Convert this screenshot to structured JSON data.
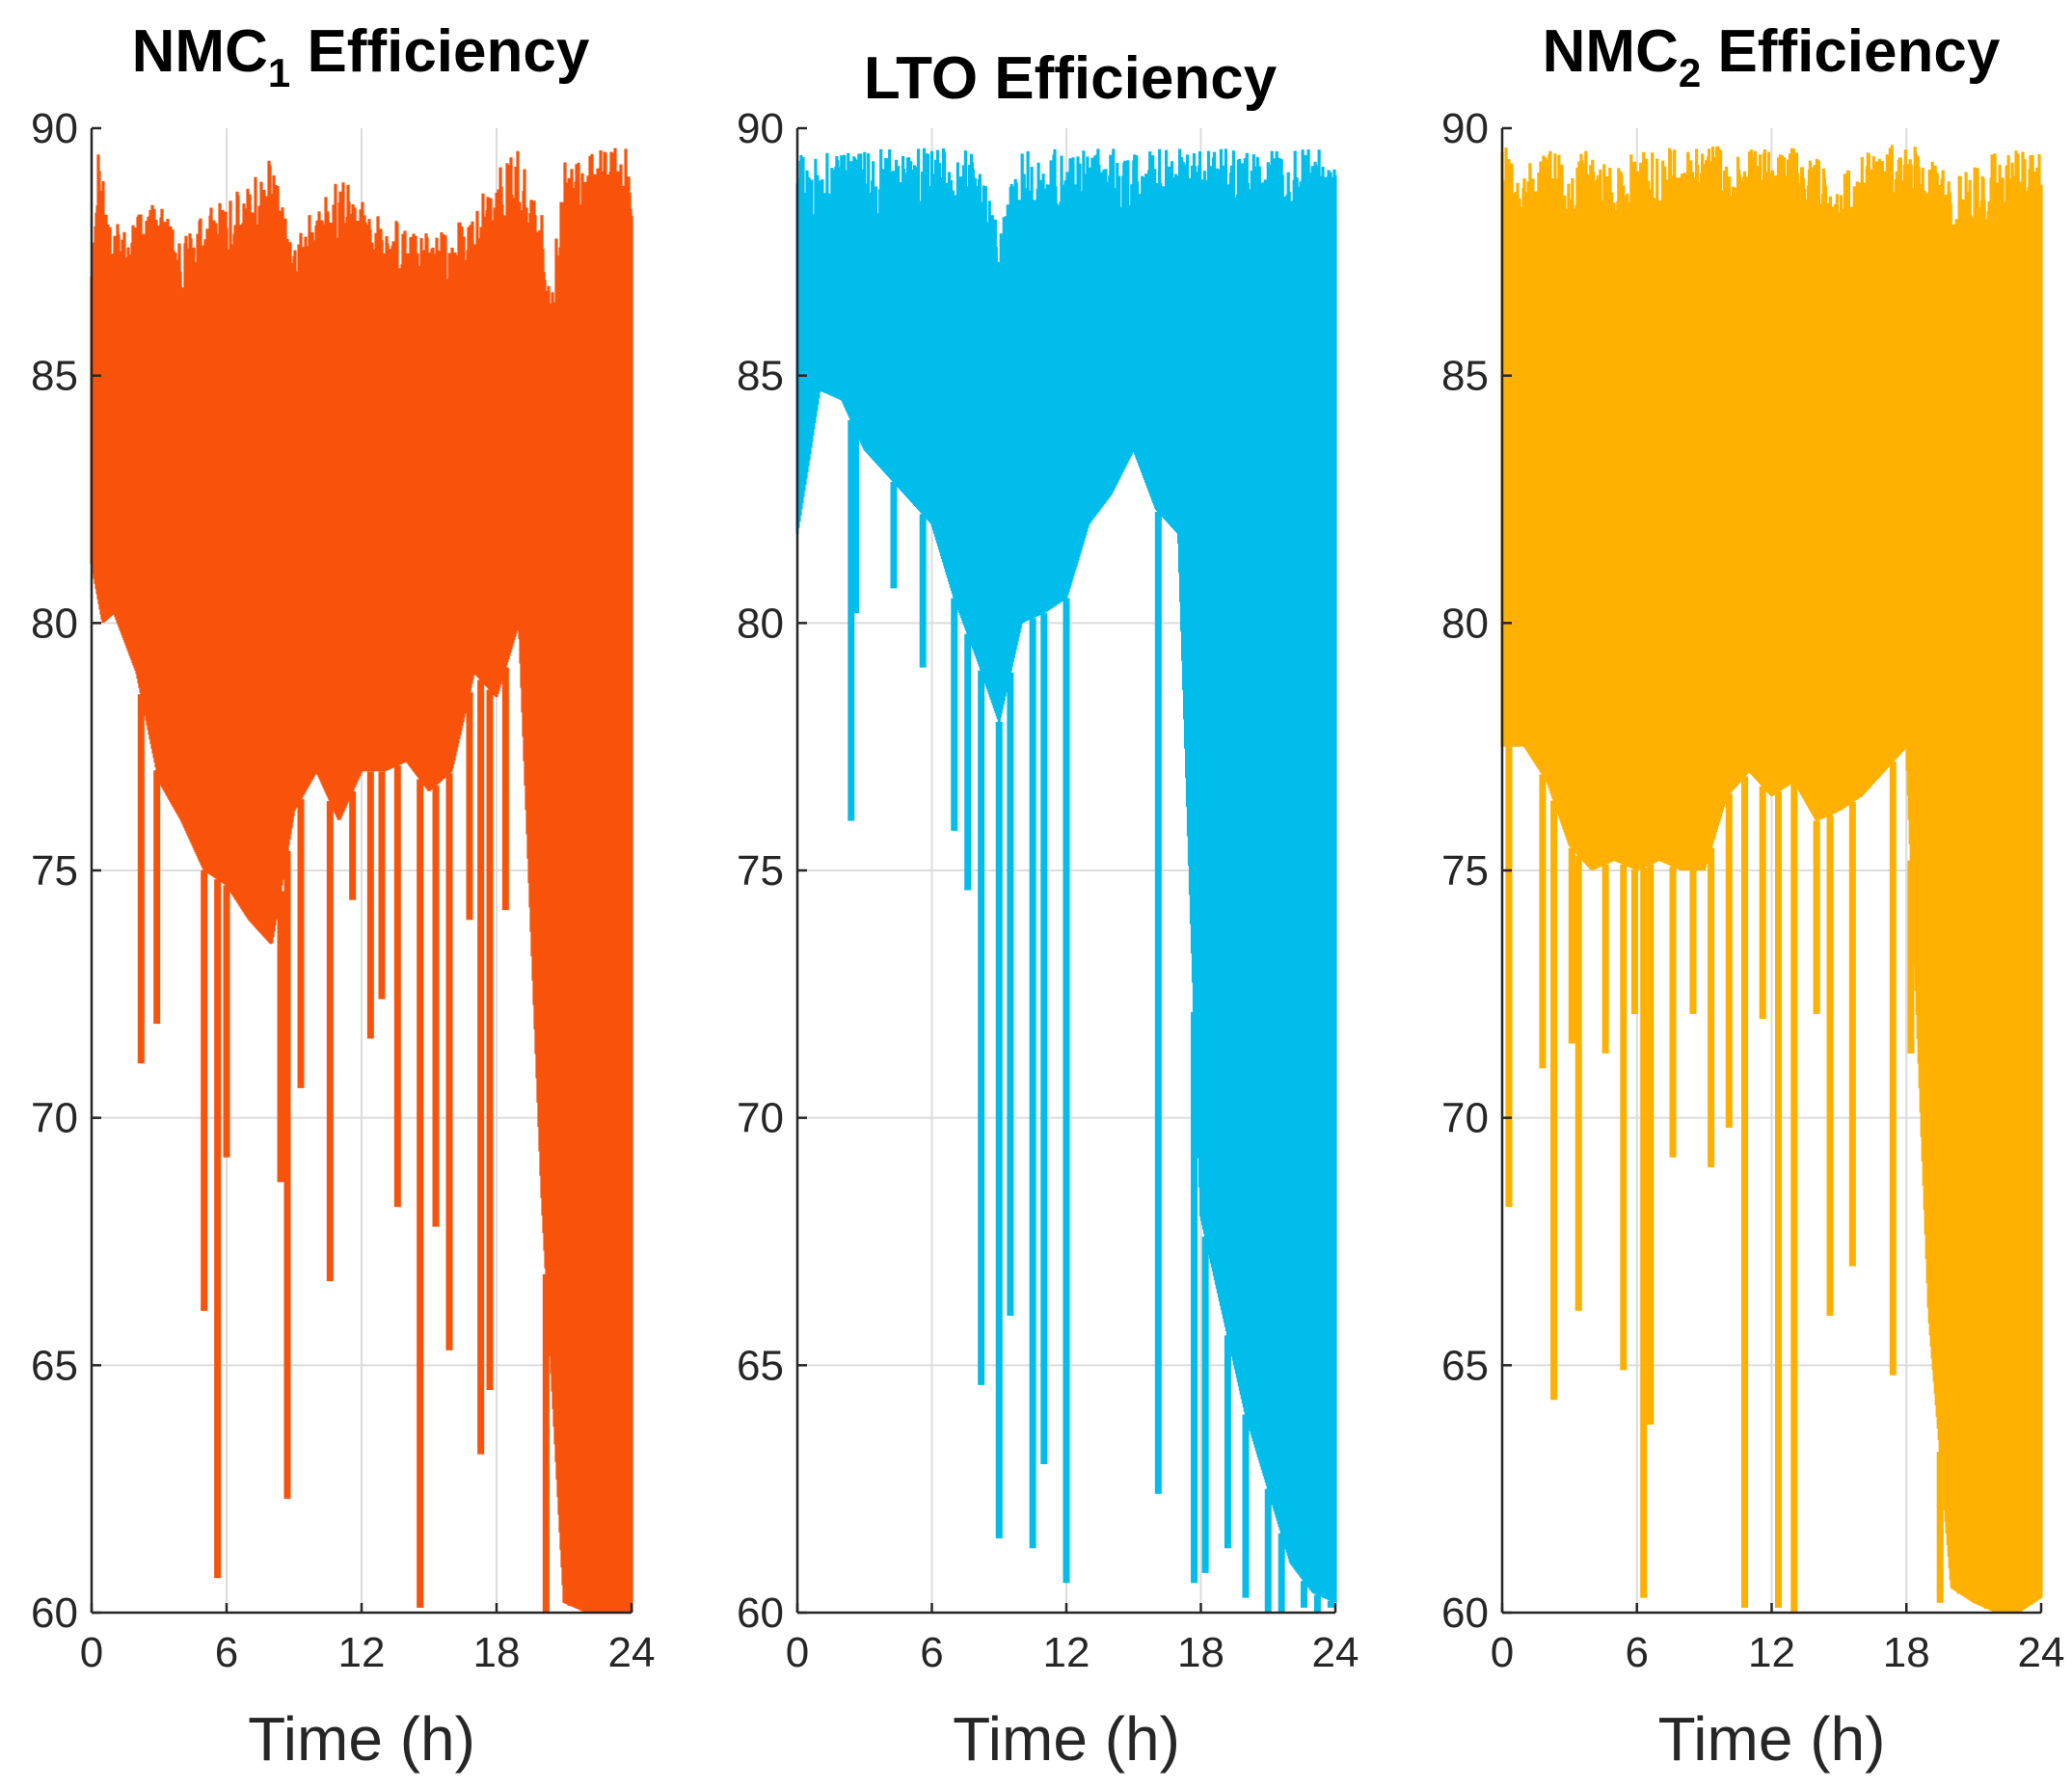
{
  "chart_data": [
    {
      "type": "line",
      "title": "NMC",
      "title_sub": "1",
      "title_suffix": " Efficiency",
      "xlabel": "Time (h)",
      "ylabel": "",
      "xlim": [
        0,
        24
      ],
      "ylim": [
        60,
        90
      ],
      "xticks": [
        0,
        6,
        12,
        18,
        24
      ],
      "yticks": [
        60,
        65,
        70,
        75,
        80,
        85,
        90
      ],
      "grid": true,
      "color": "#f9530b",
      "series": [
        {
          "name": "NMC1 efficiency",
          "upper": [
            [
              0,
              87
            ],
            [
              0.3,
              89.7
            ],
            [
              1,
              88
            ],
            [
              2,
              88.4
            ],
            [
              3,
              88.5
            ],
            [
              4,
              87.8
            ],
            [
              5,
              88.3
            ],
            [
              6,
              88.6
            ],
            [
              7,
              88.9
            ],
            [
              8,
              89.4
            ],
            [
              9,
              87.8
            ],
            [
              10,
              88.6
            ],
            [
              11,
              89.0
            ],
            [
              12,
              88.7
            ],
            [
              13,
              88.1
            ],
            [
              14,
              88.4
            ],
            [
              15,
              88.1
            ],
            [
              16,
              88.0
            ],
            [
              17,
              88.4
            ],
            [
              18,
              89.2
            ],
            [
              19,
              89.6
            ],
            [
              20,
              88.3
            ],
            [
              20.5,
              87.0
            ],
            [
              21,
              89.6
            ],
            [
              22,
              89.6
            ],
            [
              23,
              89.6
            ],
            [
              24,
              89.6
            ]
          ],
          "lower": [
            [
              0,
              81.2
            ],
            [
              0.5,
              80.0
            ],
            [
              1,
              80.2
            ],
            [
              2,
              79.0
            ],
            [
              3,
              76.8
            ],
            [
              4,
              76.0
            ],
            [
              5,
              75.0
            ],
            [
              6,
              74.7
            ],
            [
              7,
              74.0
            ],
            [
              8,
              73.5
            ],
            [
              9,
              76.2
            ],
            [
              10,
              77.0
            ],
            [
              11,
              76.0
            ],
            [
              12,
              77.0
            ],
            [
              13,
              77.0
            ],
            [
              14,
              77.2
            ],
            [
              15,
              76.6
            ],
            [
              16,
              77.0
            ],
            [
              17,
              79.0
            ],
            [
              18,
              78.5
            ],
            [
              19,
              80.0
            ],
            [
              20,
              68.5
            ],
            [
              21,
              60.2
            ],
            [
              22,
              60.0
            ],
            [
              23,
              60.0
            ],
            [
              24,
              60.0
            ]
          ],
          "spikes": [
            [
              2.2,
              71.1
            ],
            [
              2.9,
              71.9
            ],
            [
              5.0,
              66.1
            ],
            [
              5.6,
              60.7
            ],
            [
              6.0,
              69.2
            ],
            [
              8.4,
              68.7
            ],
            [
              8.7,
              62.3
            ],
            [
              9.3,
              70.6
            ],
            [
              10.6,
              66.7
            ],
            [
              11.6,
              74.4
            ],
            [
              12.4,
              71.6
            ],
            [
              12.9,
              72.4
            ],
            [
              13.6,
              68.2
            ],
            [
              14.6,
              60.1
            ],
            [
              15.3,
              67.8
            ],
            [
              15.9,
              65.3
            ],
            [
              16.8,
              74.0
            ],
            [
              17.3,
              63.2
            ],
            [
              17.7,
              64.5
            ],
            [
              18.4,
              74.2
            ],
            [
              20.2,
              60.0
            ],
            [
              21.3,
              63.0
            ],
            [
              22.3,
              60.8
            ],
            [
              23.1,
              60.4
            ]
          ]
        }
      ]
    },
    {
      "type": "line",
      "title": "LTO Efficiency",
      "title_sub": "",
      "title_suffix": "",
      "xlabel": "Time (h)",
      "ylabel": "",
      "xlim": [
        0,
        24
      ],
      "ylim": [
        60,
        90
      ],
      "xticks": [
        0,
        6,
        12,
        18,
        24
      ],
      "yticks": [
        60,
        65,
        70,
        75,
        80,
        85,
        90
      ],
      "grid": true,
      "color": "#00bdeb",
      "series": [
        {
          "name": "LTO efficiency",
          "upper": [
            [
              0,
              89.6
            ],
            [
              1,
              89.5
            ],
            [
              2,
              89.6
            ],
            [
              3,
              89.6
            ],
            [
              4,
              89.6
            ],
            [
              5,
              89.6
            ],
            [
              6,
              89.6
            ],
            [
              7,
              89.6
            ],
            [
              8,
              89.5
            ],
            [
              9,
              88.2
            ],
            [
              9.5,
              88.8
            ],
            [
              10,
              89.6
            ],
            [
              11,
              89.6
            ],
            [
              12,
              89.6
            ],
            [
              13,
              89.6
            ],
            [
              14,
              89.6
            ],
            [
              15,
              89.6
            ],
            [
              16,
              89.6
            ],
            [
              17,
              89.6
            ],
            [
              18,
              89.6
            ],
            [
              19,
              89.6
            ],
            [
              20,
              89.6
            ],
            [
              21,
              89.6
            ],
            [
              22,
              89.6
            ],
            [
              23,
              89.6
            ],
            [
              24,
              89.6
            ]
          ],
          "lower": [
            [
              0,
              81.8
            ],
            [
              1,
              84.7
            ],
            [
              2,
              84.5
            ],
            [
              3,
              83.5
            ],
            [
              4,
              83.0
            ],
            [
              5,
              82.5
            ],
            [
              6,
              82.0
            ],
            [
              7,
              80.5
            ],
            [
              8,
              79.3
            ],
            [
              9,
              78.0
            ],
            [
              10,
              80.0
            ],
            [
              11,
              80.2
            ],
            [
              12,
              80.5
            ],
            [
              13,
              82.0
            ],
            [
              14,
              82.6
            ],
            [
              15,
              83.5
            ],
            [
              16,
              82.3
            ],
            [
              17,
              81.8
            ],
            [
              18,
              68.0
            ],
            [
              19,
              66.0
            ],
            [
              20,
              64.0
            ],
            [
              21,
              62.5
            ],
            [
              22,
              61.0
            ],
            [
              23,
              60.4
            ],
            [
              24,
              60.2
            ]
          ],
          "spikes": [
            [
              2.4,
              76.0
            ],
            [
              2.6,
              80.2
            ],
            [
              4.3,
              80.7
            ],
            [
              5.6,
              79.1
            ],
            [
              7.0,
              75.8
            ],
            [
              7.6,
              74.6
            ],
            [
              8.2,
              64.6
            ],
            [
              9.0,
              61.5
            ],
            [
              9.5,
              66.0
            ],
            [
              10.5,
              61.3
            ],
            [
              11.0,
              63.0
            ],
            [
              12.0,
              60.6
            ],
            [
              16.1,
              62.4
            ],
            [
              17.7,
              60.6
            ],
            [
              18.2,
              60.8
            ],
            [
              19.2,
              61.3
            ],
            [
              20.0,
              60.3
            ],
            [
              21.0,
              60.0
            ],
            [
              21.6,
              60.0
            ],
            [
              22.6,
              60.1
            ],
            [
              23.2,
              60.0
            ],
            [
              23.8,
              60.1
            ]
          ]
        }
      ]
    },
    {
      "type": "line",
      "title": "NMC",
      "title_sub": "2",
      "title_suffix": " Efficiency",
      "xlabel": "Time (h)",
      "ylabel": "",
      "xlim": [
        0,
        24
      ],
      "ylim": [
        60,
        90
      ],
      "xticks": [
        0,
        6,
        12,
        18,
        24
      ],
      "yticks": [
        60,
        65,
        70,
        75,
        80,
        85,
        90
      ],
      "grid": true,
      "color": "#ffb000",
      "series": [
        {
          "name": "NMC2 efficiency",
          "upper": [
            [
              0,
              89.7
            ],
            [
              1,
              89.2
            ],
            [
              2,
              89.6
            ],
            [
              3,
              89.4
            ],
            [
              4,
              89.6
            ],
            [
              5,
              89.2
            ],
            [
              6,
              89.6
            ],
            [
              7,
              89.6
            ],
            [
              8,
              89.6
            ],
            [
              9,
              89.7
            ],
            [
              10,
              89.6
            ],
            [
              11,
              89.6
            ],
            [
              12,
              89.6
            ],
            [
              13,
              89.6
            ],
            [
              14,
              89.4
            ],
            [
              15,
              89.0
            ],
            [
              16,
              89.5
            ],
            [
              17,
              89.6
            ],
            [
              18,
              89.8
            ],
            [
              19,
              89.6
            ],
            [
              20,
              89.0
            ],
            [
              21,
              89.2
            ],
            [
              22,
              89.6
            ],
            [
              23,
              89.6
            ],
            [
              24,
              89.5
            ]
          ],
          "lower": [
            [
              0,
              77.5
            ],
            [
              1,
              77.5
            ],
            [
              2,
              76.8
            ],
            [
              3,
              75.5
            ],
            [
              4,
              75.0
            ],
            [
              5,
              75.2
            ],
            [
              6,
              75.0
            ],
            [
              7,
              75.2
            ],
            [
              8,
              75.0
            ],
            [
              9,
              75.0
            ],
            [
              10,
              76.5
            ],
            [
              11,
              77.0
            ],
            [
              12,
              76.5
            ],
            [
              13,
              76.8
            ],
            [
              14,
              76.0
            ],
            [
              15,
              76.2
            ],
            [
              16,
              76.5
            ],
            [
              17,
              77.0
            ],
            [
              18,
              77.5
            ],
            [
              19,
              66.0
            ],
            [
              20,
              60.5
            ],
            [
              21,
              60.2
            ],
            [
              22,
              60.0
            ],
            [
              23,
              60.0
            ],
            [
              24,
              60.3
            ]
          ],
          "spikes": [
            [
              0.3,
              68.2
            ],
            [
              1.8,
              71.0
            ],
            [
              2.3,
              64.3
            ],
            [
              3.1,
              71.5
            ],
            [
              3.4,
              66.1
            ],
            [
              4.6,
              71.3
            ],
            [
              5.4,
              64.9
            ],
            [
              5.9,
              72.1
            ],
            [
              6.3,
              60.3
            ],
            [
              6.6,
              63.8
            ],
            [
              7.6,
              69.2
            ],
            [
              8.5,
              72.1
            ],
            [
              9.3,
              69.0
            ],
            [
              10.1,
              69.8
            ],
            [
              10.8,
              60.1
            ],
            [
              11.6,
              72.0
            ],
            [
              12.3,
              60.1
            ],
            [
              13.0,
              60.0
            ],
            [
              14.0,
              72.1
            ],
            [
              14.6,
              66.0
            ],
            [
              15.6,
              67.0
            ],
            [
              17.4,
              64.8
            ],
            [
              18.2,
              71.3
            ],
            [
              19.5,
              60.2
            ],
            [
              20.4,
              62.8
            ],
            [
              21.6,
              61.3
            ]
          ]
        }
      ]
    }
  ]
}
